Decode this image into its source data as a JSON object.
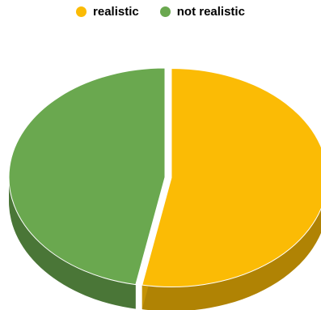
{
  "chart_data": {
    "type": "pie",
    "style": "3d",
    "legend_position": "top",
    "slices": [
      {
        "label": "realistic",
        "value": 53,
        "color": "#fbbb05",
        "exploded": true
      },
      {
        "label": "not realistic",
        "value": 47,
        "color": "#6aa84f",
        "exploded": false
      }
    ]
  }
}
